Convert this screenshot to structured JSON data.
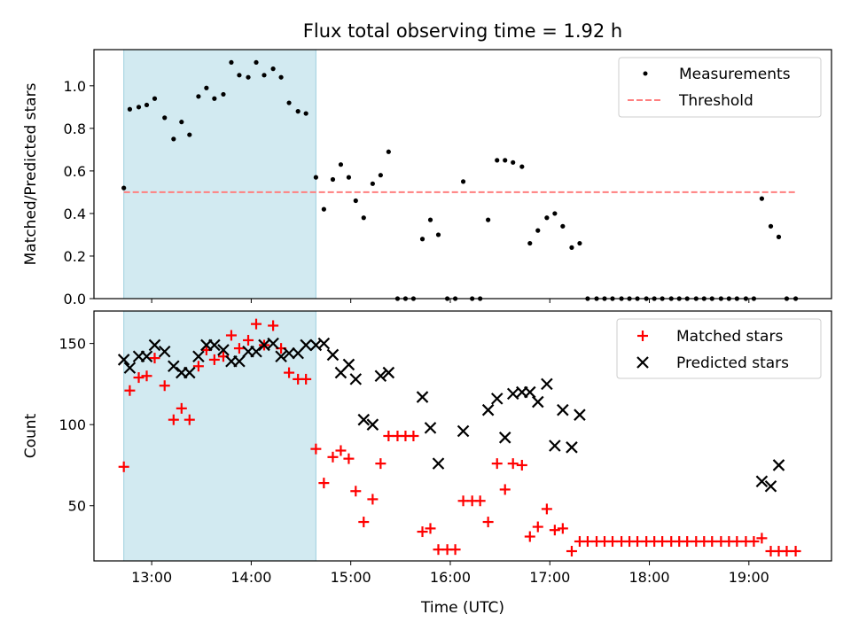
{
  "figure": {
    "title": "Flux total observing time = 1.92 h"
  },
  "chart_data": [
    {
      "type": "scatter",
      "panel": "top",
      "ylabel": "Matched/Predicted stars",
      "xlabel": "",
      "x_ticks": [
        "13:00",
        "14:00",
        "15:00",
        "16:00",
        "17:00",
        "18:00",
        "19:00"
      ],
      "xlim": [
        12.42,
        19.83
      ],
      "ylim": [
        0,
        1.17
      ],
      "y_ticks": [
        "0.0",
        "0.2",
        "0.4",
        "0.6",
        "0.8",
        "1.0"
      ],
      "legend": {
        "placement": "upper right",
        "entries": [
          "Measurements",
          "Threshold"
        ]
      },
      "shaded_region": {
        "x": [
          12.72,
          14.65
        ],
        "color": "#add8e6"
      },
      "series": [
        {
          "name": "Measurements",
          "kind": "points",
          "color": "#000000",
          "points": [
            [
              12.72,
              0.52
            ],
            [
              12.78,
              0.89
            ],
            [
              12.87,
              0.9
            ],
            [
              12.95,
              0.91
            ],
            [
              13.03,
              0.94
            ],
            [
              13.13,
              0.85
            ],
            [
              13.22,
              0.75
            ],
            [
              13.3,
              0.83
            ],
            [
              13.38,
              0.77
            ],
            [
              13.47,
              0.95
            ],
            [
              13.55,
              0.99
            ],
            [
              13.63,
              0.94
            ],
            [
              13.72,
              0.96
            ],
            [
              13.8,
              1.11
            ],
            [
              13.88,
              1.05
            ],
            [
              13.97,
              1.04
            ],
            [
              14.05,
              1.11
            ],
            [
              14.13,
              1.05
            ],
            [
              14.22,
              1.08
            ],
            [
              14.3,
              1.04
            ],
            [
              14.38,
              0.92
            ],
            [
              14.47,
              0.88
            ],
            [
              14.55,
              0.87
            ],
            [
              14.65,
              0.57
            ],
            [
              14.73,
              0.42
            ],
            [
              14.82,
              0.56
            ],
            [
              14.9,
              0.63
            ],
            [
              14.98,
              0.57
            ],
            [
              15.05,
              0.46
            ],
            [
              15.13,
              0.38
            ],
            [
              15.22,
              0.54
            ],
            [
              15.3,
              0.58
            ],
            [
              15.38,
              0.69
            ],
            [
              15.47,
              0.0
            ],
            [
              15.55,
              0.0
            ],
            [
              15.63,
              0.0
            ],
            [
              15.72,
              0.28
            ],
            [
              15.8,
              0.37
            ],
            [
              15.88,
              0.3
            ],
            [
              15.97,
              0.0
            ],
            [
              16.05,
              0.0
            ],
            [
              16.13,
              0.55
            ],
            [
              16.22,
              0.0
            ],
            [
              16.3,
              0.0
            ],
            [
              16.38,
              0.37
            ],
            [
              16.47,
              0.65
            ],
            [
              16.55,
              0.65
            ],
            [
              16.63,
              0.64
            ],
            [
              16.72,
              0.62
            ],
            [
              16.8,
              0.26
            ],
            [
              16.88,
              0.32
            ],
            [
              16.97,
              0.38
            ],
            [
              17.05,
              0.4
            ],
            [
              17.13,
              0.34
            ],
            [
              17.22,
              0.24
            ],
            [
              17.3,
              0.26
            ],
            [
              17.38,
              0.0
            ],
            [
              17.47,
              0.0
            ],
            [
              17.55,
              0.0
            ],
            [
              17.63,
              0.0
            ],
            [
              17.72,
              0.0
            ],
            [
              17.8,
              0.0
            ],
            [
              17.88,
              0.0
            ],
            [
              17.97,
              0.0
            ],
            [
              18.05,
              0.0
            ],
            [
              18.13,
              0.0
            ],
            [
              18.22,
              0.0
            ],
            [
              18.3,
              0.0
            ],
            [
              18.38,
              0.0
            ],
            [
              18.47,
              0.0
            ],
            [
              18.55,
              0.0
            ],
            [
              18.63,
              0.0
            ],
            [
              18.72,
              0.0
            ],
            [
              18.8,
              0.0
            ],
            [
              18.88,
              0.0
            ],
            [
              18.97,
              0.0
            ],
            [
              19.05,
              0.0
            ],
            [
              19.13,
              0.47
            ],
            [
              19.22,
              0.34
            ],
            [
              19.3,
              0.29
            ],
            [
              19.38,
              0.0
            ],
            [
              19.47,
              0.0
            ]
          ]
        },
        {
          "name": "Threshold",
          "kind": "dashed-line",
          "color": "#ff7f7f",
          "points": [
            [
              12.72,
              0.5
            ],
            [
              19.47,
              0.5
            ]
          ]
        }
      ]
    },
    {
      "type": "scatter",
      "panel": "bottom",
      "ylabel": "Count",
      "xlabel": "Time (UTC)",
      "x_ticks": [
        "13:00",
        "14:00",
        "15:00",
        "16:00",
        "17:00",
        "18:00",
        "19:00"
      ],
      "xlim": [
        12.42,
        19.83
      ],
      "ylim": [
        16,
        170
      ],
      "y_ticks": [
        "50",
        "100",
        "150"
      ],
      "legend": {
        "placement": "upper right",
        "entries": [
          "Matched stars",
          "Predicted stars"
        ]
      },
      "shaded_region": {
        "x": [
          12.72,
          14.65
        ],
        "color": "#add8e6"
      },
      "series": [
        {
          "name": "Matched stars",
          "kind": "plus",
          "color": "#ff0000",
          "points": [
            [
              12.72,
              74
            ],
            [
              12.78,
              121
            ],
            [
              12.87,
              129
            ],
            [
              12.95,
              130
            ],
            [
              13.03,
              141
            ],
            [
              13.13,
              124
            ],
            [
              13.22,
              103
            ],
            [
              13.3,
              110
            ],
            [
              13.38,
              103
            ],
            [
              13.47,
              136
            ],
            [
              13.55,
              146
            ],
            [
              13.63,
              140
            ],
            [
              13.72,
              142
            ],
            [
              13.8,
              155
            ],
            [
              13.88,
              147
            ],
            [
              13.97,
              152
            ],
            [
              14.05,
              162
            ],
            [
              14.13,
              149
            ],
            [
              14.22,
              161
            ],
            [
              14.3,
              147
            ],
            [
              14.38,
              132
            ],
            [
              14.47,
              128
            ],
            [
              14.55,
              128
            ],
            [
              14.65,
              85
            ],
            [
              14.73,
              64
            ],
            [
              14.82,
              80
            ],
            [
              14.9,
              84
            ],
            [
              14.98,
              79
            ],
            [
              15.05,
              59
            ],
            [
              15.13,
              40
            ],
            [
              15.22,
              54
            ],
            [
              15.3,
              76
            ],
            [
              15.38,
              93
            ],
            [
              15.47,
              93
            ],
            [
              15.55,
              93
            ],
            [
              15.63,
              93
            ],
            [
              15.72,
              34
            ],
            [
              15.8,
              36
            ],
            [
              15.88,
              23
            ],
            [
              15.97,
              23
            ],
            [
              16.05,
              23
            ],
            [
              16.13,
              53
            ],
            [
              16.22,
              53
            ],
            [
              16.3,
              53
            ],
            [
              16.38,
              40
            ],
            [
              16.47,
              76
            ],
            [
              16.55,
              60
            ],
            [
              16.63,
              76
            ],
            [
              16.72,
              75
            ],
            [
              16.8,
              31
            ],
            [
              16.88,
              37
            ],
            [
              16.97,
              48
            ],
            [
              17.05,
              35
            ],
            [
              17.13,
              36
            ],
            [
              17.22,
              22
            ],
            [
              17.3,
              28
            ],
            [
              17.38,
              28
            ],
            [
              17.47,
              28
            ],
            [
              17.55,
              28
            ],
            [
              17.63,
              28
            ],
            [
              17.72,
              28
            ],
            [
              17.8,
              28
            ],
            [
              17.88,
              28
            ],
            [
              17.97,
              28
            ],
            [
              18.05,
              28
            ],
            [
              18.13,
              28
            ],
            [
              18.22,
              28
            ],
            [
              18.3,
              28
            ],
            [
              18.38,
              28
            ],
            [
              18.47,
              28
            ],
            [
              18.55,
              28
            ],
            [
              18.63,
              28
            ],
            [
              18.72,
              28
            ],
            [
              18.8,
              28
            ],
            [
              18.88,
              28
            ],
            [
              18.97,
              28
            ],
            [
              19.05,
              28
            ],
            [
              19.13,
              30
            ],
            [
              19.22,
              22
            ],
            [
              19.3,
              22
            ],
            [
              19.38,
              22
            ],
            [
              19.47,
              22
            ]
          ]
        },
        {
          "name": "Predicted stars",
          "kind": "x",
          "color": "#000000",
          "points": [
            [
              12.72,
              140
            ],
            [
              12.78,
              135
            ],
            [
              12.87,
              142
            ],
            [
              12.95,
              142
            ],
            [
              13.03,
              149
            ],
            [
              13.13,
              145
            ],
            [
              13.22,
              136
            ],
            [
              13.3,
              132
            ],
            [
              13.38,
              132
            ],
            [
              13.47,
              142
            ],
            [
              13.55,
              149
            ],
            [
              13.63,
              149
            ],
            [
              13.72,
              146
            ],
            [
              13.8,
              139
            ],
            [
              13.88,
              139
            ],
            [
              13.97,
              145
            ],
            [
              14.05,
              145
            ],
            [
              14.13,
              149
            ],
            [
              14.22,
              150
            ],
            [
              14.3,
              142
            ],
            [
              14.38,
              144
            ],
            [
              14.47,
              144
            ],
            [
              14.55,
              149
            ],
            [
              14.65,
              149
            ],
            [
              14.73,
              150
            ],
            [
              14.82,
              143
            ],
            [
              14.9,
              132
            ],
            [
              14.98,
              137
            ],
            [
              15.05,
              128
            ],
            [
              15.13,
              103
            ],
            [
              15.22,
              100
            ],
            [
              15.3,
              130
            ],
            [
              15.38,
              132
            ],
            [
              15.72,
              117
            ],
            [
              15.8,
              98
            ],
            [
              15.88,
              76
            ],
            [
              16.13,
              96
            ],
            [
              16.38,
              109
            ],
            [
              16.47,
              116
            ],
            [
              16.55,
              92
            ],
            [
              16.63,
              119
            ],
            [
              16.72,
              120
            ],
            [
              16.8,
              120
            ],
            [
              16.88,
              114
            ],
            [
              16.97,
              125
            ],
            [
              17.05,
              87
            ],
            [
              17.13,
              109
            ],
            [
              17.22,
              86
            ],
            [
              17.3,
              106
            ],
            [
              19.13,
              65
            ],
            [
              19.22,
              62
            ],
            [
              19.3,
              75
            ]
          ]
        }
      ]
    }
  ]
}
